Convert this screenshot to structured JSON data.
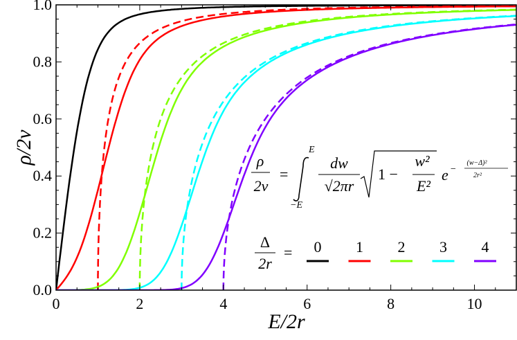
{
  "chart_data": {
    "type": "line",
    "title": "",
    "xlabel": "E/2r",
    "ylabel": "ρ/2ν",
    "xlim": [
      0,
      11
    ],
    "ylim": [
      0,
      1
    ],
    "xticks": [
      "0",
      "2",
      "4",
      "6",
      "8",
      "10"
    ],
    "yticks": [
      "0.0",
      "0.2",
      "0.4",
      "0.6",
      "0.8",
      "1.0"
    ],
    "grid": false,
    "formula": {
      "lhs_num": "ρ",
      "lhs_den": "2ν",
      "eq": "=",
      "upper": "E",
      "lower": "−E",
      "frac_num": "dw",
      "frac_den": "√2πr",
      "sqrt_body": "1 −",
      "w_num": "w²",
      "w_den": "E²",
      "exp_base": "e",
      "exp_sign": "−",
      "exp_num": "(w−Δ)²",
      "exp_den": "2r²"
    },
    "legend": {
      "num": "Δ",
      "den": "2r",
      "eq": "=",
      "placement": "bottom-right"
    },
    "solid_model": "Gaussian-broadened: ρ/2ν = ∫ dw/(√(2π) r) √(1−w²/E²) exp(−(w−Δ)²/2r²)",
    "dashed_model": "sharp: ρ/2ν = √(1−Δ²/E²) for E>Δ, else 0",
    "series": [
      {
        "name": "0",
        "delta": 0,
        "color": "#000000",
        "dashed": false
      },
      {
        "name": "1",
        "delta": 1,
        "color": "#ff0000",
        "dashed": true
      },
      {
        "name": "2",
        "delta": 2,
        "color": "#80ff00",
        "dashed": true
      },
      {
        "name": "3",
        "delta": 3,
        "color": "#00ffff",
        "dashed": true
      },
      {
        "name": "4",
        "delta": 4,
        "color": "#8000ff",
        "dashed": true
      }
    ]
  }
}
